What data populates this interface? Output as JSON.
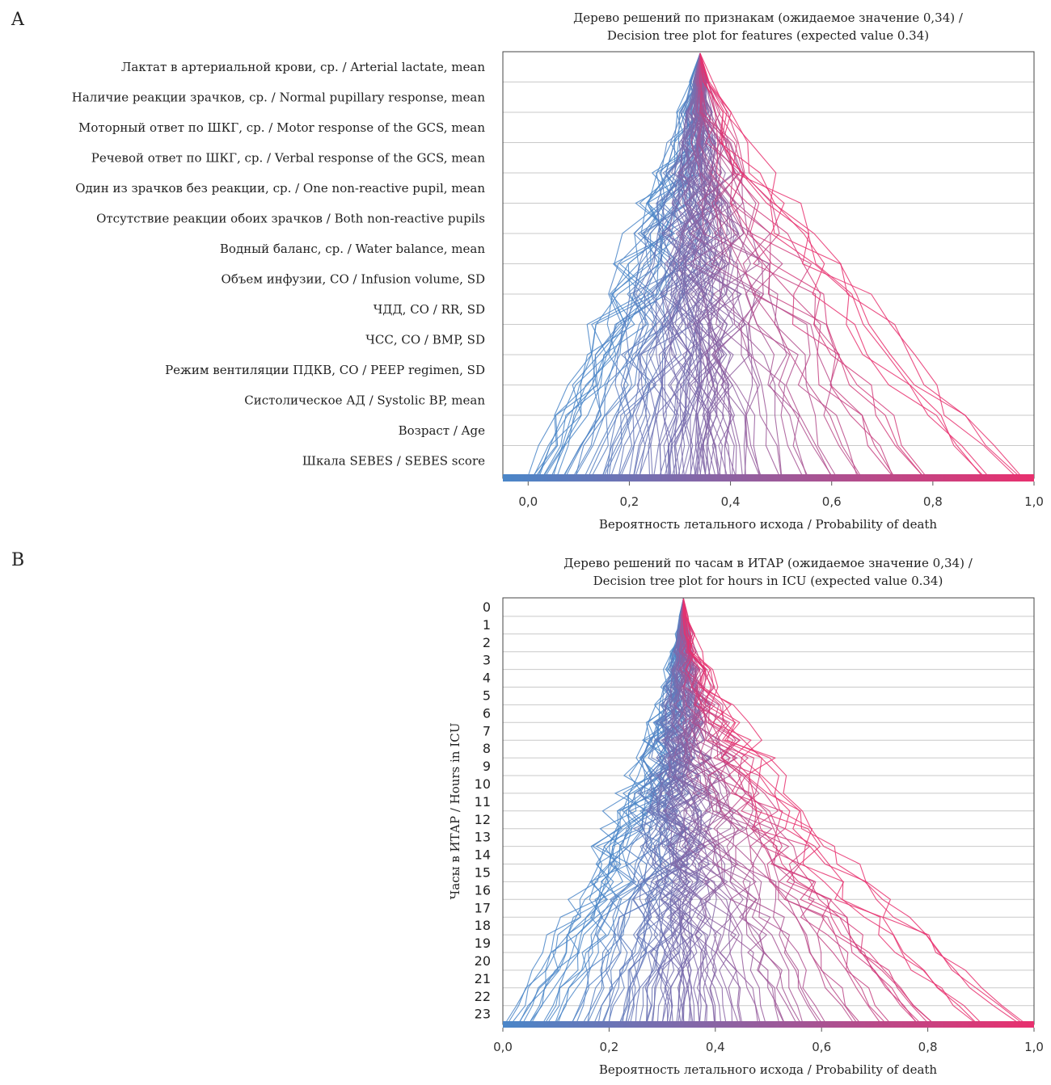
{
  "chart_data": [
    {
      "panel": "A",
      "type": "line",
      "title_line1": "Дерево решений по признакам (ожидаемое значение 0,34) /",
      "title_line2": "Decision tree plot for features (expected value 0.34)",
      "xlabel": "Вероятность летального исхода / Probability of death",
      "ylabel": "",
      "xlim": [
        -0.05,
        1.0
      ],
      "x_ticks": [
        "0,0",
        "0,2",
        "0,4",
        "0,6",
        "0,8",
        "1,0"
      ],
      "x_tick_values": [
        0,
        0.2,
        0.4,
        0.6,
        0.8,
        1.0
      ],
      "expected_value": 0.34,
      "categories": [
        "Лактат в артериальной крови, ср. / Arterial lactate, mean",
        "Наличие реакции зрачков, ср. / Normal pupillary response, mean",
        "Моторный ответ по ШКГ, ср. / Motor response of the GCS, mean",
        "Речевой ответ по ШКГ, ср. / Verbal response of the GCS, mean",
        "Один из зрачков без реакции, ср. / One non-reactive pupil, mean",
        "Отсутствие реакции обоих зрачков / Both non-reactive pupils",
        "Водный баланс, ср. / Water balance, mean",
        "Объем инфузии, СО / Infusion volume, SD",
        "ЧДД, СО / RR, SD",
        "ЧСС, СО / BMP, SD",
        "Режим вентиляции ПДКВ, СО / PEEP regimen, SD",
        "Систолическое АД / Systolic BP, mean",
        "Возраст / Age",
        "Шкала SEBES / SEBES score"
      ],
      "final_values": [
        0.01,
        0.02,
        0.03,
        0.05,
        0.07,
        0.09,
        0.12,
        0.15,
        0.16,
        0.18,
        0.2,
        0.22,
        0.24,
        0.26,
        0.27,
        0.28,
        0.29,
        0.3,
        0.31,
        0.32,
        0.33,
        0.34,
        0.35,
        0.36,
        0.37,
        0.38,
        0.39,
        0.41,
        0.43,
        0.46,
        0.5,
        0.55,
        0.6,
        0.65,
        0.72,
        0.78,
        0.9,
        0.97
      ],
      "color_low": "#4a86c8",
      "color_high": "#e8306e"
    },
    {
      "panel": "B",
      "type": "line",
      "title_line1": "Дерево решений по часам в ИТАР (ожидаемое значение 0,34) /",
      "title_line2": "Decision tree plot for hours in ICU (expected value 0.34)",
      "xlabel": "Вероятность летального исхода / Probability of death",
      "ylabel": "Часы в ИТАР / Hours in ICU",
      "xlim": [
        0.0,
        1.0
      ],
      "x_ticks": [
        "0,0",
        "0,2",
        "0,4",
        "0,6",
        "0,8",
        "1,0"
      ],
      "x_tick_values": [
        0,
        0.2,
        0.4,
        0.6,
        0.8,
        1.0
      ],
      "expected_value": 0.34,
      "categories": [
        "0",
        "1",
        "2",
        "3",
        "4",
        "5",
        "6",
        "7",
        "8",
        "9",
        "10",
        "11",
        "12",
        "13",
        "14",
        "15",
        "16",
        "17",
        "18",
        "19",
        "20",
        "21",
        "22",
        "23"
      ],
      "final_values": [
        0.01,
        0.03,
        0.05,
        0.08,
        0.1,
        0.13,
        0.16,
        0.18,
        0.2,
        0.22,
        0.24,
        0.25,
        0.27,
        0.28,
        0.3,
        0.31,
        0.32,
        0.33,
        0.34,
        0.35,
        0.36,
        0.38,
        0.4,
        0.42,
        0.45,
        0.48,
        0.52,
        0.56,
        0.6,
        0.66,
        0.72,
        0.78,
        0.8,
        0.9,
        0.97
      ],
      "color_low": "#4a86c8",
      "color_high": "#e8306e"
    }
  ],
  "panel_a_letter": "A",
  "panel_b_letter": "B"
}
